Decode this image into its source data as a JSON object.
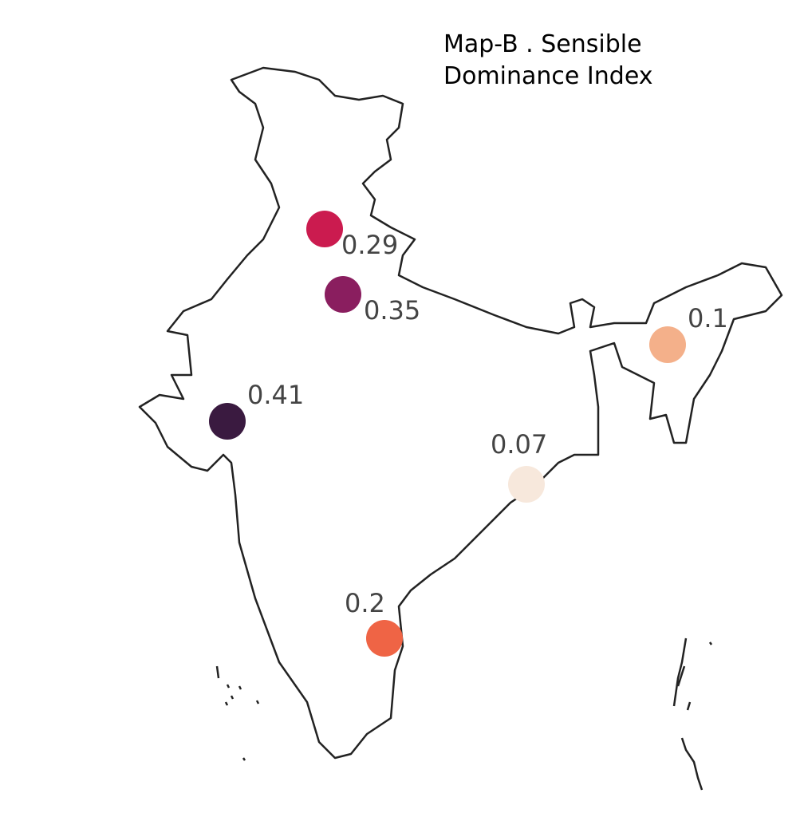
{
  "title": "Map-B . Sensible Dominance Index",
  "points": [
    {
      "value": 0.29,
      "color": "#cb1b4f"
    },
    {
      "value": 0.35,
      "color": "#8a1e5f"
    },
    {
      "value": 0.41,
      "color": "#3a1a40"
    },
    {
      "value": 0.1,
      "color": "#f4b08a"
    },
    {
      "value": 0.07,
      "color": "#f7e8dc"
    },
    {
      "value": 0.2,
      "color": "#ef6445"
    }
  ]
}
